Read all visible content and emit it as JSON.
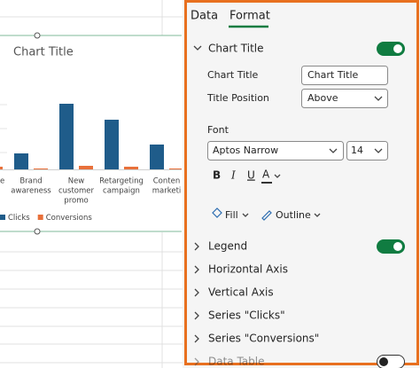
{
  "sheet": {
    "chart": {
      "title": "Chart Title",
      "categories": [
        [
          "e"
        ],
        [
          "Brand",
          "awareness"
        ],
        [
          "New",
          "customer",
          "promo"
        ],
        [
          "Retargeting",
          "campaign"
        ],
        [
          "Conten",
          "marketi"
        ]
      ],
      "ylim": [
        0,
        80
      ],
      "series": [
        {
          "name": "Clicks",
          "color": "#1f5c8a",
          "values": [
            null,
            18,
            74,
            56,
            28
          ]
        },
        {
          "name": "Conversions",
          "color": "#e8703a",
          "values": [
            3,
            1,
            4,
            3,
            1
          ]
        }
      ]
    }
  },
  "pane": {
    "tabs": [
      "Data",
      "Format"
    ],
    "chart_title_section": {
      "title": "Chart Title",
      "title_label": "Chart Title",
      "title_value": "Chart Title",
      "position_label": "Title Position",
      "position_value": "Above",
      "font_label": "Font",
      "font_value": "Aptos Narrow",
      "size_value": "14",
      "font_styles": [
        "B",
        "I",
        "U",
        "A"
      ],
      "fill": "Fill",
      "outline": "Outline"
    },
    "sections": [
      "Legend",
      "Horizontal Axis",
      "Vertical Axis",
      "Series \"Clicks\"",
      "Series \"Conversions\"",
      "Data Table"
    ]
  }
}
